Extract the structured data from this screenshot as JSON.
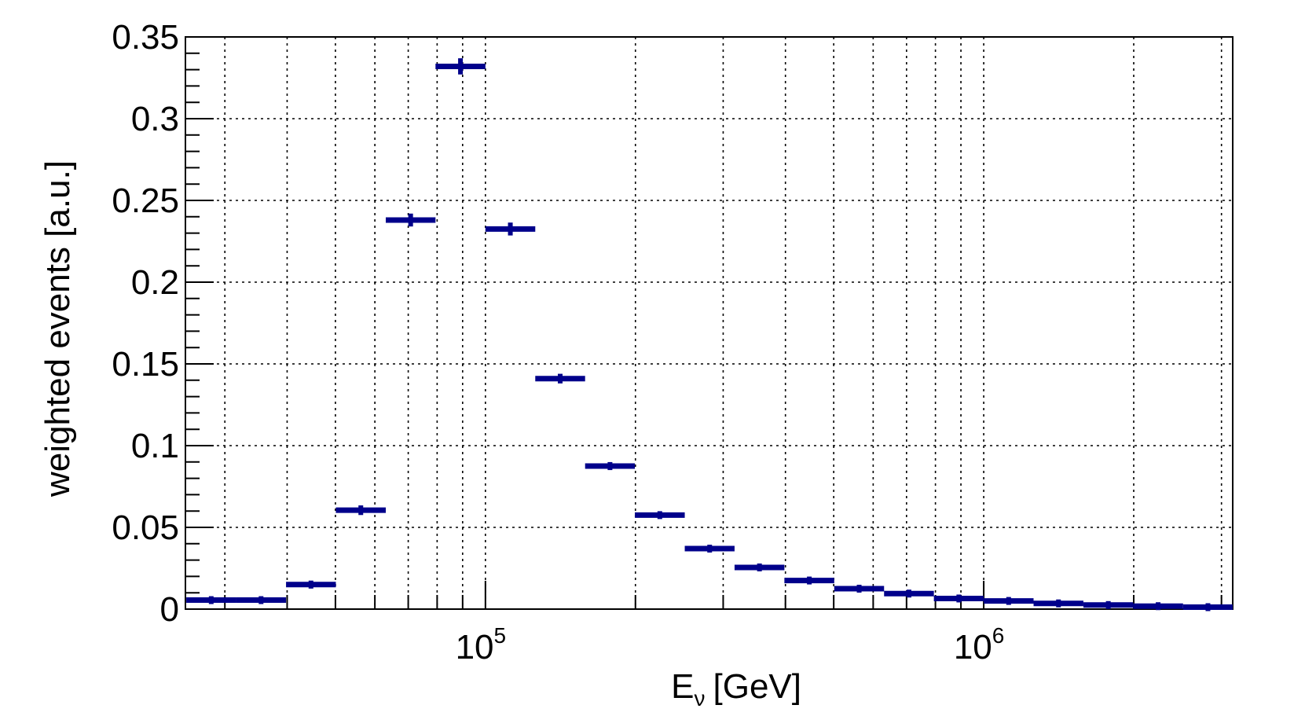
{
  "chart_data": {
    "type": "histogram",
    "xlabel": "E",
    "xlabel_subscript": "ν",
    "xlabel_unit": "[GeV]",
    "ylabel": "weighted events [a.u.]",
    "x_scale": "log",
    "xlim": [
      25000,
      3160000
    ],
    "ylim": [
      0,
      0.35
    ],
    "grid": true,
    "y_ticks": [
      0,
      0.05,
      0.1,
      0.15,
      0.2,
      0.25,
      0.3,
      0.35
    ],
    "y_tick_labels": [
      "0",
      "0.05",
      "0.1",
      "0.15",
      "0.2",
      "0.25",
      "0.3",
      "0.35"
    ],
    "x_major_ticks": [
      {
        "value": 100000,
        "base": "10",
        "exp": "5"
      },
      {
        "value": 1000000,
        "base": "10",
        "exp": "6"
      }
    ],
    "bins": [
      {
        "low": 25100,
        "high": 31600,
        "value": 0.0055,
        "err": 0.0005
      },
      {
        "low": 31600,
        "high": 39800,
        "value": 0.0055,
        "err": 0.0005
      },
      {
        "low": 39800,
        "high": 50100,
        "value": 0.015,
        "err": 0.001
      },
      {
        "low": 50100,
        "high": 63100,
        "value": 0.0605,
        "err": 0.0015
      },
      {
        "low": 63100,
        "high": 79400,
        "value": 0.238,
        "err": 0.0025
      },
      {
        "low": 79400,
        "high": 100000,
        "value": 0.332,
        "err": 0.0035
      },
      {
        "low": 100000,
        "high": 125900,
        "value": 0.2325,
        "err": 0.0025
      },
      {
        "low": 125900,
        "high": 158500,
        "value": 0.141,
        "err": 0.0015
      },
      {
        "low": 158500,
        "high": 199500,
        "value": 0.0875,
        "err": 0.001
      },
      {
        "low": 199500,
        "high": 251200,
        "value": 0.0575,
        "err": 0.0008
      },
      {
        "low": 251200,
        "high": 316200,
        "value": 0.037,
        "err": 0.0006
      },
      {
        "low": 316200,
        "high": 398100,
        "value": 0.0255,
        "err": 0.0005
      },
      {
        "low": 398100,
        "high": 501200,
        "value": 0.0175,
        "err": 0.0004
      },
      {
        "low": 501200,
        "high": 631000,
        "value": 0.0125,
        "err": 0.0003
      },
      {
        "low": 631000,
        "high": 794300,
        "value": 0.0095,
        "err": 0.0003
      },
      {
        "low": 794300,
        "high": 1000000,
        "value": 0.0065,
        "err": 0.0002
      },
      {
        "low": 1000000,
        "high": 1259000,
        "value": 0.005,
        "err": 0.0002
      },
      {
        "low": 1259000,
        "high": 1585000,
        "value": 0.0035,
        "err": 0.0002
      },
      {
        "low": 1585000,
        "high": 1995000,
        "value": 0.0025,
        "err": 0.0001
      },
      {
        "low": 1995000,
        "high": 2512000,
        "value": 0.0018,
        "err": 0.0001
      },
      {
        "low": 2512000,
        "high": 3162000,
        "value": 0.0012,
        "err": 0.0001
      }
    ],
    "colors": {
      "marker": "#00008b",
      "axis": "#000000",
      "grid": "#000000"
    }
  }
}
